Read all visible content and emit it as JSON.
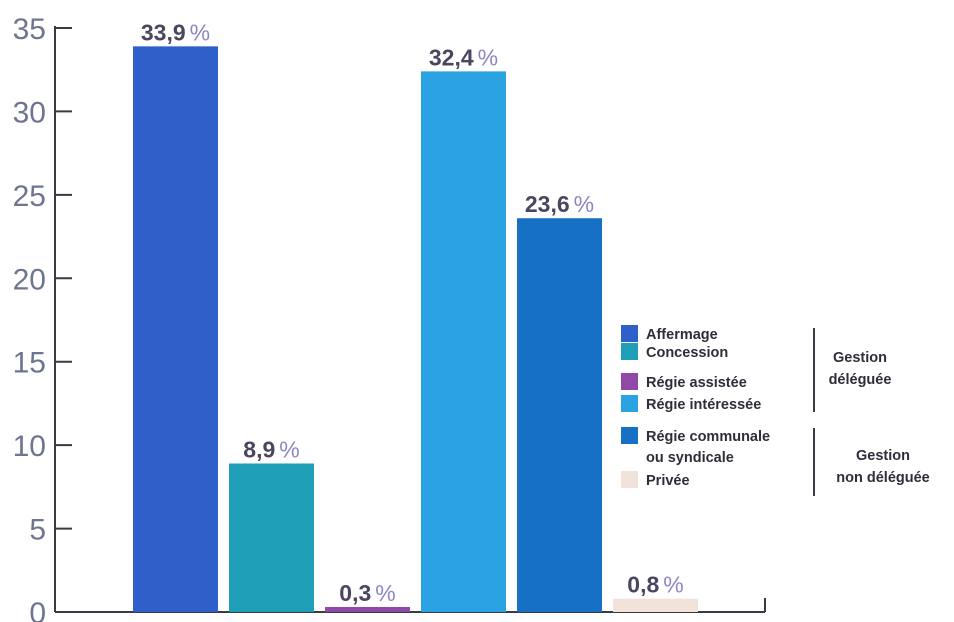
{
  "chart_data": {
    "type": "bar",
    "categories": [
      "Affermage",
      "Concession",
      "Régie assistée",
      "Régie intéressée",
      "Régie communale ou syndicale",
      "Privée"
    ],
    "values": [
      33.9,
      8.9,
      0.3,
      32.4,
      23.6,
      0.8
    ],
    "value_labels": [
      "33,9",
      "8,9",
      "0,3",
      "32,4",
      "23,6",
      "0,8"
    ],
    "value_unit": "%",
    "colors": [
      "#2f5fc8",
      "#1f9fb7",
      "#8e4aa6",
      "#2ba3e3",
      "#1671c5",
      "#f2e3da"
    ],
    "ylim": [
      0,
      35
    ],
    "yticks": [
      "0",
      "5",
      "10",
      "15",
      "20",
      "25",
      "30",
      "35"
    ],
    "grid": false,
    "legend_position": "right",
    "legend": [
      {
        "label": "Affermage",
        "color": "#2f5fc8"
      },
      {
        "label": "Concession",
        "color": "#1f9fb7"
      },
      {
        "label": "Régie assistée",
        "color": "#8e4aa6"
      },
      {
        "label": "Régie intéressée",
        "color": "#2ba3e3"
      },
      {
        "label": [
          "Régie communale",
          "ou syndicale"
        ],
        "color": "#1671c5"
      },
      {
        "label": "Privée",
        "color": "#f2e3da"
      }
    ],
    "groups": [
      {
        "label": [
          "Gestion",
          "déléguée"
        ]
      },
      {
        "label": [
          "Gestion",
          "non déléguée"
        ]
      }
    ]
  }
}
